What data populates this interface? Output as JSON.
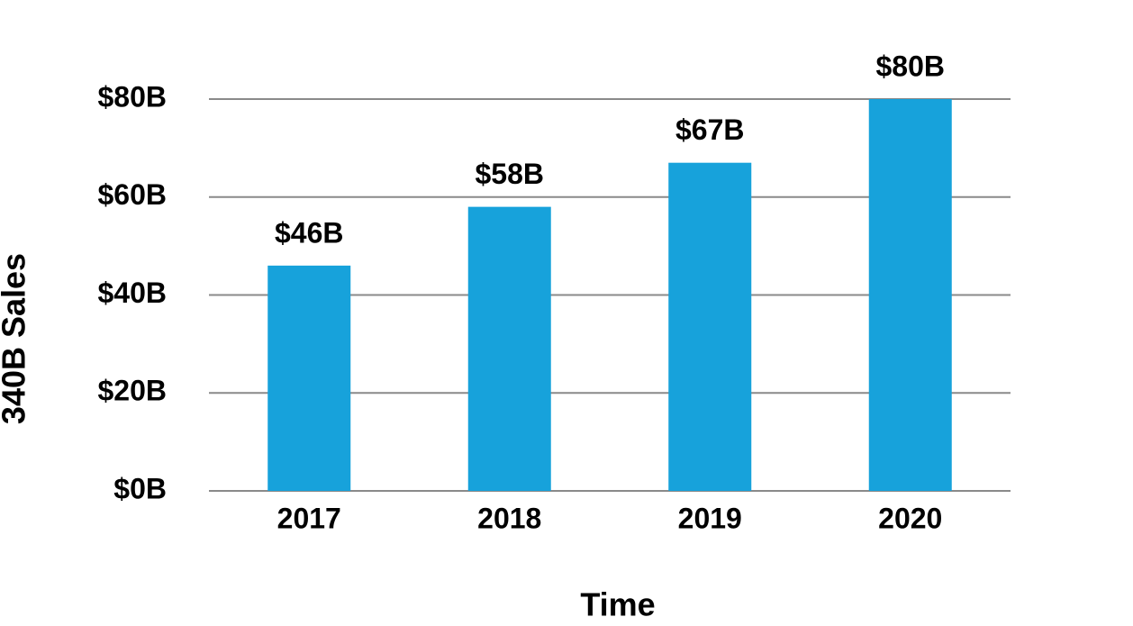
{
  "chart_data": {
    "type": "bar",
    "x_label": "Time",
    "y_label": "340B Sales",
    "categories": [
      "2017",
      "2018",
      "2019",
      "2020"
    ],
    "values": [
      46,
      58,
      67,
      80
    ],
    "value_labels": [
      "$46B",
      "$58B",
      "$67B",
      "$80B"
    ],
    "color": "#17a2db",
    "ylim": [
      0,
      80
    ],
    "yticks": [
      {
        "value": 0,
        "label": "$0B"
      },
      {
        "value": 20,
        "label": "$20B"
      },
      {
        "value": 40,
        "label": "$40B"
      },
      {
        "value": 60,
        "label": "$60B"
      },
      {
        "value": 80,
        "label": "$80B"
      }
    ],
    "grid": true
  }
}
